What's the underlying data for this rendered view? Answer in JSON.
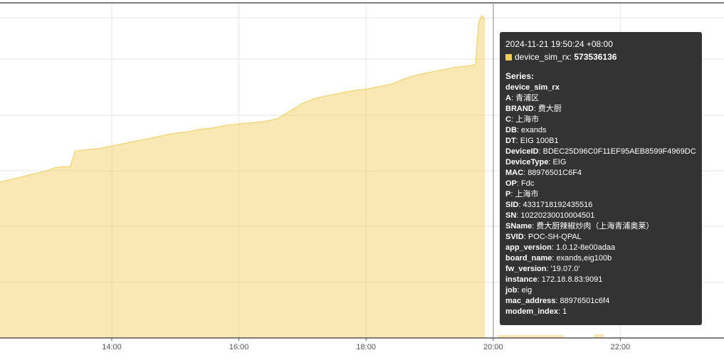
{
  "chart_data": {
    "type": "area",
    "x_tick_labels": [
      "14:00",
      "16:00",
      "18:00",
      "20:00",
      "22:00"
    ],
    "x_ticks_hours": [
      14,
      16,
      18,
      20,
      22
    ],
    "series": [
      {
        "name": "device_sim_rx",
        "color": "#f2cc59",
        "points_hours": [
          [
            12.0,
            418
          ],
          [
            12.25,
            421
          ],
          [
            12.5,
            424
          ],
          [
            12.75,
            427
          ],
          [
            13.0,
            430
          ],
          [
            13.1,
            432
          ],
          [
            13.22,
            433
          ],
          [
            13.35,
            433
          ],
          [
            13.42,
            445
          ],
          [
            13.6,
            446
          ],
          [
            13.8,
            447
          ],
          [
            14.0,
            449
          ],
          [
            14.2,
            451
          ],
          [
            14.4,
            453
          ],
          [
            14.6,
            455
          ],
          [
            14.8,
            457
          ],
          [
            15.0,
            459
          ],
          [
            15.2,
            460
          ],
          [
            15.4,
            462
          ],
          [
            15.6,
            463
          ],
          [
            15.8,
            465
          ],
          [
            16.0,
            466
          ],
          [
            16.2,
            467
          ],
          [
            16.4,
            468
          ],
          [
            16.6,
            470
          ],
          [
            16.8,
            476
          ],
          [
            17.0,
            482
          ],
          [
            17.2,
            486
          ],
          [
            17.4,
            488
          ],
          [
            17.6,
            490
          ],
          [
            17.8,
            492
          ],
          [
            18.0,
            493
          ],
          [
            18.2,
            495
          ],
          [
            18.4,
            497
          ],
          [
            18.6,
            501
          ],
          [
            18.8,
            504
          ],
          [
            19.0,
            506
          ],
          [
            19.2,
            508
          ],
          [
            19.4,
            510
          ],
          [
            19.6,
            511
          ],
          [
            19.72,
            512
          ],
          [
            19.77,
            545
          ],
          [
            19.82,
            550
          ],
          [
            19.87,
            547
          ]
        ]
      }
    ],
    "grid": true
  },
  "tooltip": {
    "time": "2024-11-21 19:50:24 +08:00",
    "series_name": "device_sim_rx",
    "value": "573536136",
    "series_title": "Series:",
    "series_label": "device_sim_rx",
    "labels": [
      {
        "k": "A",
        "v": "青浦区"
      },
      {
        "k": "BRAND",
        "v": "费大厨"
      },
      {
        "k": "C",
        "v": "上海市"
      },
      {
        "k": "DB",
        "v": "exands"
      },
      {
        "k": "DT",
        "v": "EIG 100B1"
      },
      {
        "k": "DeviceID",
        "v": "BDEC25D96C0F11EF95AEB8599F4969DC"
      },
      {
        "k": "DeviceType",
        "v": "EIG"
      },
      {
        "k": "MAC",
        "v": "88976501C6F4"
      },
      {
        "k": "OP",
        "v": "Fdc"
      },
      {
        "k": "P",
        "v": "上海市"
      },
      {
        "k": "SID",
        "v": "4331718192435516"
      },
      {
        "k": "SN",
        "v": "10220230010004501"
      },
      {
        "k": "SName",
        "v": "费大厨辣椒炒肉（上海青浦奥莱）"
      },
      {
        "k": "SVID",
        "v": "POC-SH-QPAL"
      },
      {
        "k": "app_version",
        "v": "1.0.12-8e00adaa"
      },
      {
        "k": "board_name",
        "v": "exands,eig100b"
      },
      {
        "k": "fw_version",
        "v": "'19.07.0'"
      },
      {
        "k": "instance",
        "v": "172.18.8.83:9091"
      },
      {
        "k": "job",
        "v": "eig"
      },
      {
        "k": "mac_address",
        "v": "88976501c6f4"
      },
      {
        "k": "modem_index",
        "v": "1"
      }
    ]
  }
}
